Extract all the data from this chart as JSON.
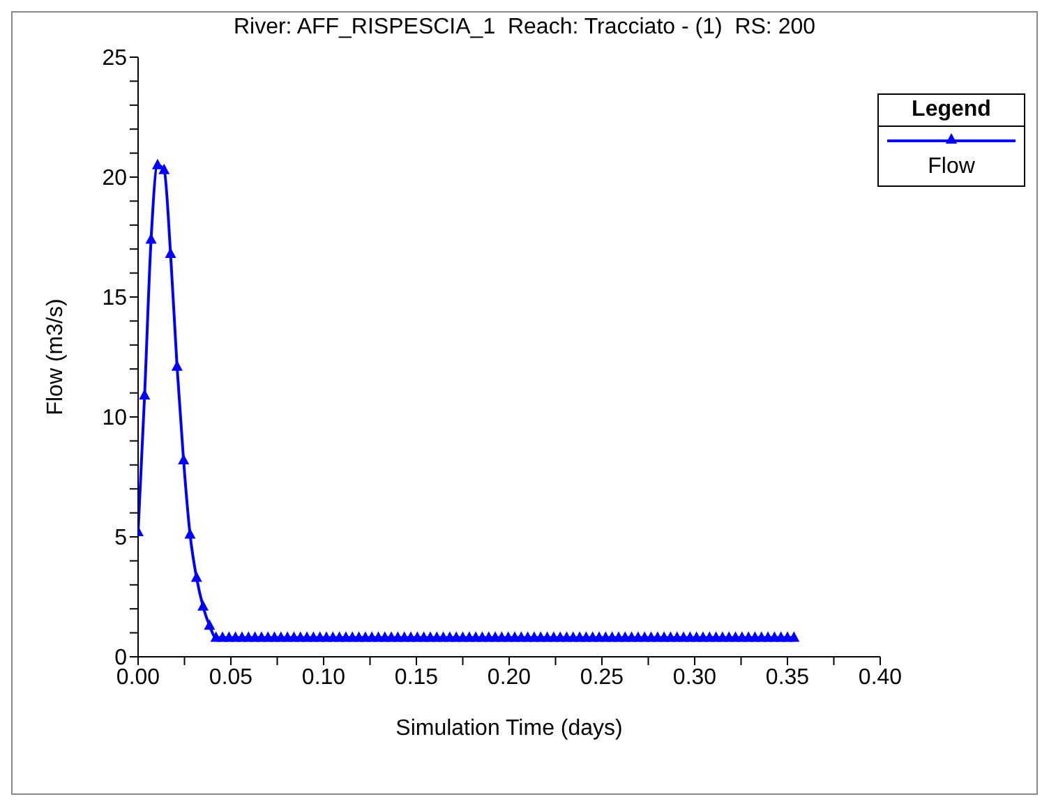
{
  "chart_data": {
    "type": "line",
    "title": "River: AFF_RISPESCIA_1  Reach: Tracciato - (1)  RS: 200",
    "xlabel": "Simulation Time (days)",
    "ylabel": "Flow  (m3/s)",
    "legend_title": "Legend",
    "legend": "top right",
    "grid": false,
    "marker": "triangle",
    "line_style": "solid",
    "xlim": [
      0,
      0.4
    ],
    "ylim": [
      0,
      25
    ],
    "xticks": [
      {
        "value": 0,
        "label": "0.00"
      },
      {
        "value": 0.025,
        "label": null
      },
      {
        "value": 0.05,
        "label": "0.05"
      },
      {
        "value": 0.075,
        "label": null
      },
      {
        "value": 0.1,
        "label": "0.10"
      },
      {
        "value": 0.125,
        "label": null
      },
      {
        "value": 0.15,
        "label": "0.15"
      },
      {
        "value": 0.175,
        "label": null
      },
      {
        "value": 0.2,
        "label": "0.20"
      },
      {
        "value": 0.225,
        "label": null
      },
      {
        "value": 0.25,
        "label": "0.25"
      },
      {
        "value": 0.275,
        "label": null
      },
      {
        "value": 0.3,
        "label": "0.30"
      },
      {
        "value": 0.325,
        "label": null
      },
      {
        "value": 0.35,
        "label": "0.35"
      },
      {
        "value": 0.375,
        "label": null
      },
      {
        "value": 0.4,
        "label": "0.40"
      }
    ],
    "yticks": [
      0,
      {
        "value": 1,
        "label": null
      },
      {
        "value": 2,
        "label": null
      },
      {
        "value": 3,
        "label": null
      },
      {
        "value": 4,
        "label": null
      },
      5,
      {
        "value": 6,
        "label": null
      },
      {
        "value": 7,
        "label": null
      },
      {
        "value": 8,
        "label": null
      },
      {
        "value": 9,
        "label": null
      },
      10,
      {
        "value": 11,
        "label": null
      },
      {
        "value": 12,
        "label": null
      },
      {
        "value": 13,
        "label": null
      },
      {
        "value": 14,
        "label": null
      },
      15,
      {
        "value": 16,
        "label": null
      },
      {
        "value": 17,
        "label": null
      },
      {
        "value": 18,
        "label": null
      },
      {
        "value": 19,
        "label": null
      },
      20,
      {
        "value": 21,
        "label": null
      },
      {
        "value": 22,
        "label": null
      },
      {
        "value": 23,
        "label": null
      },
      {
        "value": 24,
        "label": null
      },
      25
    ],
    "x": [
      0,
      0.0035,
      0.007,
      0.0105,
      0.014,
      0.0175,
      0.021,
      0.0245,
      0.028,
      0.0315,
      0.035,
      0.0385,
      0.042,
      0.0455,
      0.049,
      0.0525,
      0.056,
      0.0595,
      0.063,
      0.0665,
      0.07,
      0.0735,
      0.077,
      0.0805,
      0.084,
      0.0875,
      0.091,
      0.0945,
      0.098,
      0.1015,
      0.105,
      0.1085,
      0.112,
      0.1155,
      0.119,
      0.1225,
      0.126,
      0.1295,
      0.133,
      0.1365,
      0.14,
      0.1435,
      0.147,
      0.1505,
      0.154,
      0.1575,
      0.161,
      0.1645,
      0.168,
      0.1715,
      0.175,
      0.1785,
      0.182,
      0.1855,
      0.189,
      0.1925,
      0.196,
      0.1995,
      0.203,
      0.2065,
      0.21,
      0.2135,
      0.217,
      0.2205,
      0.224,
      0.2275,
      0.231,
      0.2345,
      0.238,
      0.2415,
      0.245,
      0.2485,
      0.252,
      0.2555,
      0.259,
      0.2625,
      0.266,
      0.2695,
      0.273,
      0.2765,
      0.28,
      0.2835,
      0.287,
      0.2905,
      0.294,
      0.2975,
      0.301,
      0.3045,
      0.308,
      0.3115,
      0.315,
      0.3185,
      0.322,
      0.3255,
      0.329,
      0.3325,
      0.336,
      0.3395,
      0.343,
      0.3465,
      0.35,
      0.3535
    ],
    "series": [
      {
        "name": "Flow",
        "color": "#0000ff",
        "values": [
          5.2,
          10.9,
          17.4,
          20.5,
          20.3,
          16.8,
          12.1,
          8.2,
          5.1,
          3.3,
          2.1,
          1.3,
          0.8,
          0.8,
          0.8,
          0.8,
          0.8,
          0.8,
          0.8,
          0.8,
          0.8,
          0.8,
          0.8,
          0.8,
          0.8,
          0.8,
          0.8,
          0.8,
          0.8,
          0.8,
          0.8,
          0.8,
          0.8,
          0.8,
          0.8,
          0.8,
          0.8,
          0.8,
          0.8,
          0.8,
          0.8,
          0.8,
          0.8,
          0.8,
          0.8,
          0.8,
          0.8,
          0.8,
          0.8,
          0.8,
          0.8,
          0.8,
          0.8,
          0.8,
          0.8,
          0.8,
          0.8,
          0.8,
          0.8,
          0.8,
          0.8,
          0.8,
          0.8,
          0.8,
          0.8,
          0.8,
          0.8,
          0.8,
          0.8,
          0.8,
          0.8,
          0.8,
          0.8,
          0.8,
          0.8,
          0.8,
          0.8,
          0.8,
          0.8,
          0.8,
          0.8,
          0.8,
          0.8,
          0.8,
          0.8,
          0.8,
          0.8,
          0.8,
          0.8,
          0.8,
          0.8,
          0.8,
          0.8,
          0.8,
          0.8,
          0.8,
          0.8,
          0.8,
          0.8,
          0.8,
          0.8,
          0.8
        ]
      }
    ]
  }
}
